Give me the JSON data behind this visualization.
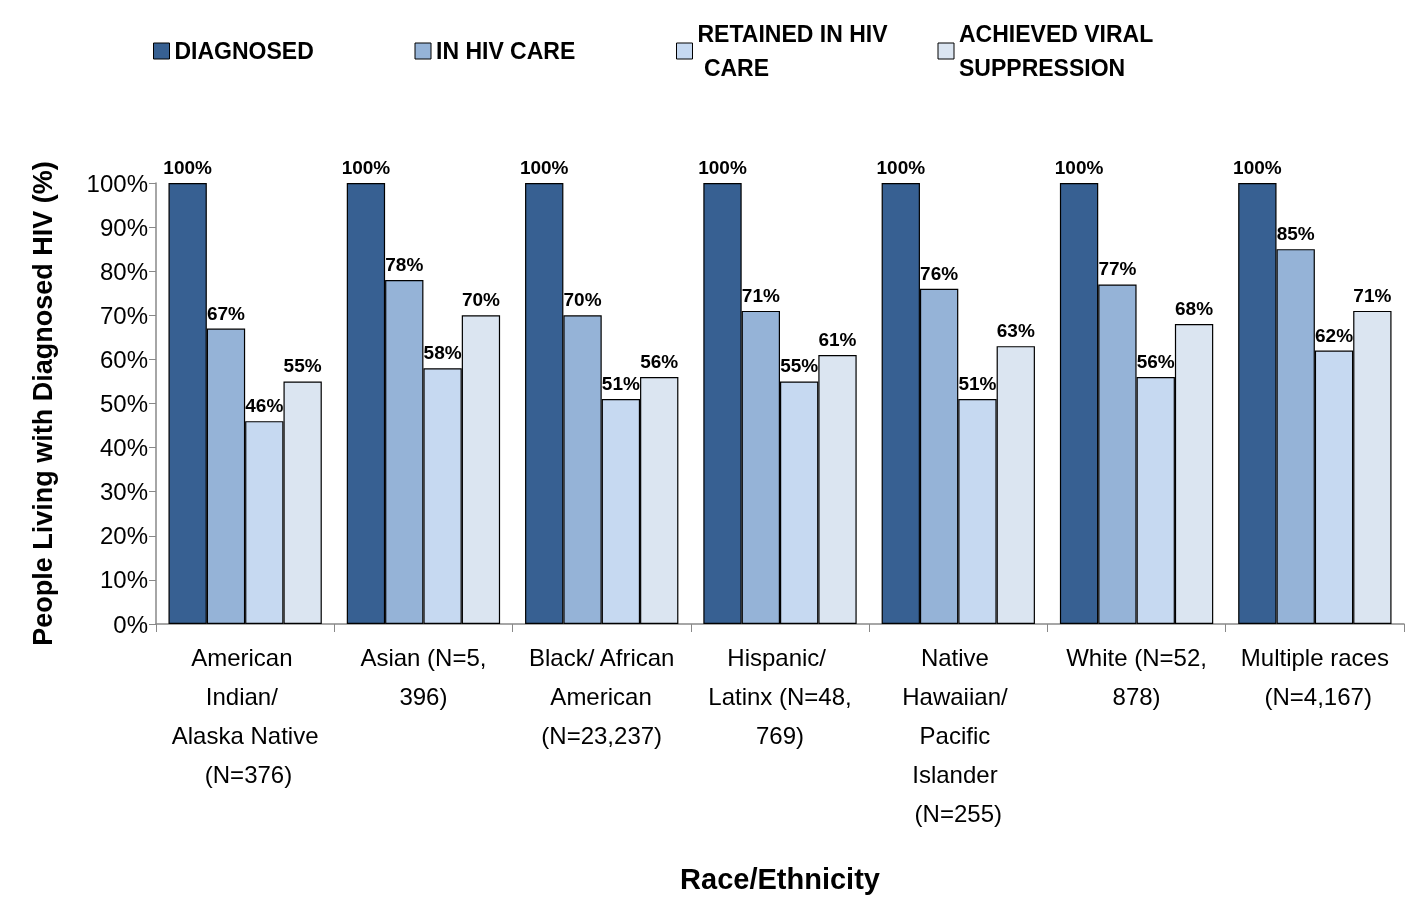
{
  "chart_data": {
    "type": "bar",
    "xlabel": "Race/Ethnicity",
    "ylabel": "People Living with Diagnosed HIV (%)",
    "categories": [
      "American Indian/ Alaska Native (N=376)",
      "Asian (N=5,396)",
      "Black/ African American (N=23,237)",
      "Hispanic/ Latinx (N=48,769)",
      "Native Hawaiian/ Pacific Islander (N=255)",
      "White (N=52,878)",
      "Multiple races (N=4,167)"
    ],
    "series": [
      {
        "name": "DIAGNOSED",
        "color": "#376092",
        "values": [
          100,
          100,
          100,
          100,
          100,
          100,
          100
        ],
        "value_labels": [
          "100%",
          "100%",
          "100%",
          "100%",
          "100%",
          "100%",
          "100%"
        ]
      },
      {
        "name": "IN HIV CARE",
        "color": "#95b3d7",
        "values": [
          67,
          78,
          70,
          71,
          76,
          77,
          85
        ],
        "value_labels": [
          "67%",
          "78%",
          "70%",
          "71%",
          "76%",
          "77%",
          "85%"
        ]
      },
      {
        "name": "RETAINED IN HIV CARE",
        "color": "#c6d9f1",
        "values": [
          46,
          58,
          51,
          55,
          51,
          56,
          62
        ],
        "value_labels": [
          "46%",
          "58%",
          "51%",
          "55%",
          "51%",
          "56%",
          "62%"
        ]
      },
      {
        "name": "ACHIEVED VIRAL SUPPRESSION",
        "color": "#dbe5f1",
        "values": [
          55,
          70,
          56,
          61,
          63,
          68,
          71
        ],
        "value_labels": [
          "55%",
          "70%",
          "56%",
          "61%",
          "63%",
          "68%",
          "71%"
        ]
      }
    ],
    "ylim": [
      0,
      100
    ],
    "yticks": [
      {
        "value": 0,
        "label": "0%"
      },
      {
        "value": 10,
        "label": "10%"
      },
      {
        "value": 20,
        "label": "20%"
      },
      {
        "value": 30,
        "label": "30%"
      },
      {
        "value": 40,
        "label": "40%"
      },
      {
        "value": 50,
        "label": "50%"
      },
      {
        "value": 60,
        "label": "60%"
      },
      {
        "value": 70,
        "label": "70%"
      },
      {
        "value": 80,
        "label": "80%"
      },
      {
        "value": 90,
        "label": "90%"
      },
      {
        "value": 100,
        "label": "100%"
      }
    ],
    "grid": false,
    "legend": "top"
  }
}
